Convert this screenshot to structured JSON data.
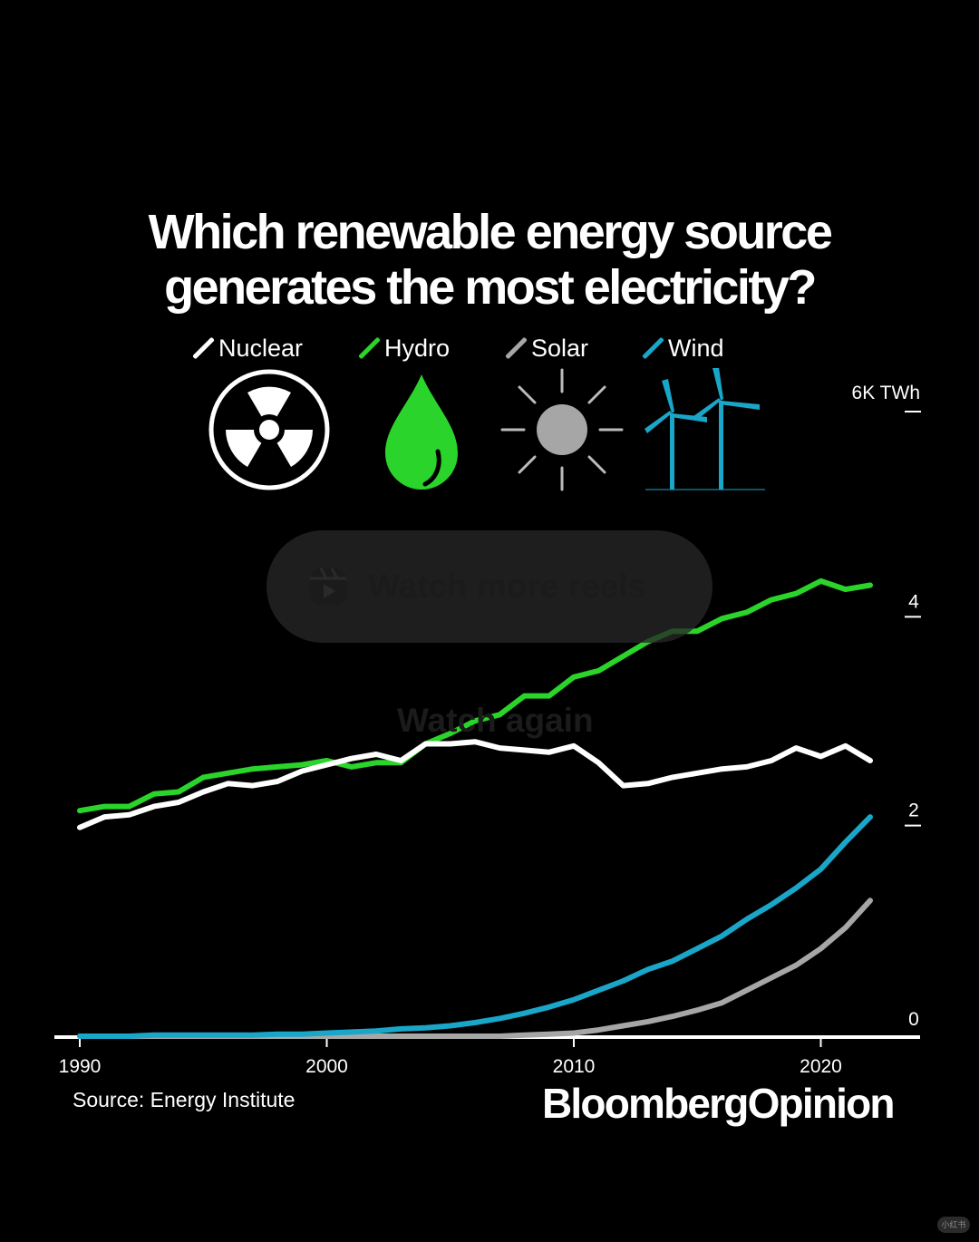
{
  "title": {
    "line1": "Which renewable energy source",
    "line2": "generates the most electricity?"
  },
  "legend": [
    {
      "label": "Nuclear",
      "color": "#ffffff",
      "icon": "radiation-icon"
    },
    {
      "label": "Hydro",
      "color": "#2ad42a",
      "icon": "water-drop-icon"
    },
    {
      "label": "Solar",
      "color": "#a6a6a6",
      "icon": "sun-icon"
    },
    {
      "label": "Wind",
      "color": "#1aa6c8",
      "icon": "wind-turbine-icon"
    }
  ],
  "chart_data": {
    "type": "line",
    "title": "Which renewable energy source generates the most electricity?",
    "ylabel": "6K TWh",
    "ylim": [
      0,
      6
    ],
    "xlim": [
      1990,
      2023
    ],
    "x_ticks": [
      "1990",
      "2000",
      "2010",
      "2020"
    ],
    "y_ticks": [
      "0",
      "2",
      "4"
    ],
    "y_top_label": "6K TWh",
    "x": [
      1990,
      1991,
      1992,
      1993,
      1994,
      1995,
      1996,
      1997,
      1998,
      1999,
      2000,
      2001,
      2002,
      2003,
      2004,
      2005,
      2006,
      2007,
      2008,
      2009,
      2010,
      2011,
      2012,
      2013,
      2014,
      2015,
      2016,
      2017,
      2018,
      2019,
      2020,
      2021,
      2022
    ],
    "series": [
      {
        "name": "Hydro",
        "color": "#2ad42a",
        "values": [
          2.16,
          2.2,
          2.2,
          2.32,
          2.34,
          2.48,
          2.52,
          2.56,
          2.58,
          2.6,
          2.64,
          2.58,
          2.62,
          2.62,
          2.8,
          2.9,
          3.02,
          3.08,
          3.26,
          3.26,
          3.44,
          3.5,
          3.64,
          3.78,
          3.88,
          3.88,
          4.0,
          4.06,
          4.18,
          4.24,
          4.36,
          4.28,
          4.32
        ]
      },
      {
        "name": "Nuclear",
        "color": "#ffffff",
        "values": [
          2.0,
          2.1,
          2.12,
          2.2,
          2.24,
          2.34,
          2.42,
          2.4,
          2.44,
          2.54,
          2.6,
          2.66,
          2.7,
          2.64,
          2.8,
          2.8,
          2.82,
          2.76,
          2.74,
          2.72,
          2.78,
          2.62,
          2.4,
          2.42,
          2.48,
          2.52,
          2.56,
          2.58,
          2.64,
          2.76,
          2.68,
          2.78,
          2.64
        ]
      },
      {
        "name": "Wind",
        "color": "#1aa6c8",
        "values": [
          0.0,
          0.0,
          0.0,
          0.01,
          0.01,
          0.01,
          0.01,
          0.01,
          0.02,
          0.02,
          0.03,
          0.04,
          0.05,
          0.07,
          0.08,
          0.1,
          0.13,
          0.17,
          0.22,
          0.28,
          0.35,
          0.44,
          0.53,
          0.64,
          0.72,
          0.84,
          0.96,
          1.12,
          1.26,
          1.42,
          1.6,
          1.86,
          2.1
        ]
      },
      {
        "name": "Solar",
        "color": "#a6a6a6",
        "values": [
          0.0,
          0.0,
          0.0,
          0.0,
          0.0,
          0.0,
          0.0,
          0.0,
          0.0,
          0.0,
          0.0,
          0.0,
          0.0,
          0.0,
          0.0,
          0.0,
          0.0,
          0.0,
          0.01,
          0.02,
          0.03,
          0.06,
          0.1,
          0.14,
          0.19,
          0.25,
          0.32,
          0.44,
          0.56,
          0.68,
          0.84,
          1.04,
          1.3
        ]
      }
    ]
  },
  "overlay": {
    "watch_more": "Watch more reels",
    "watch_again": "Watch again"
  },
  "source": "Source: Energy Institute",
  "brand": "BloombergOpinion",
  "watermark": "小红书"
}
